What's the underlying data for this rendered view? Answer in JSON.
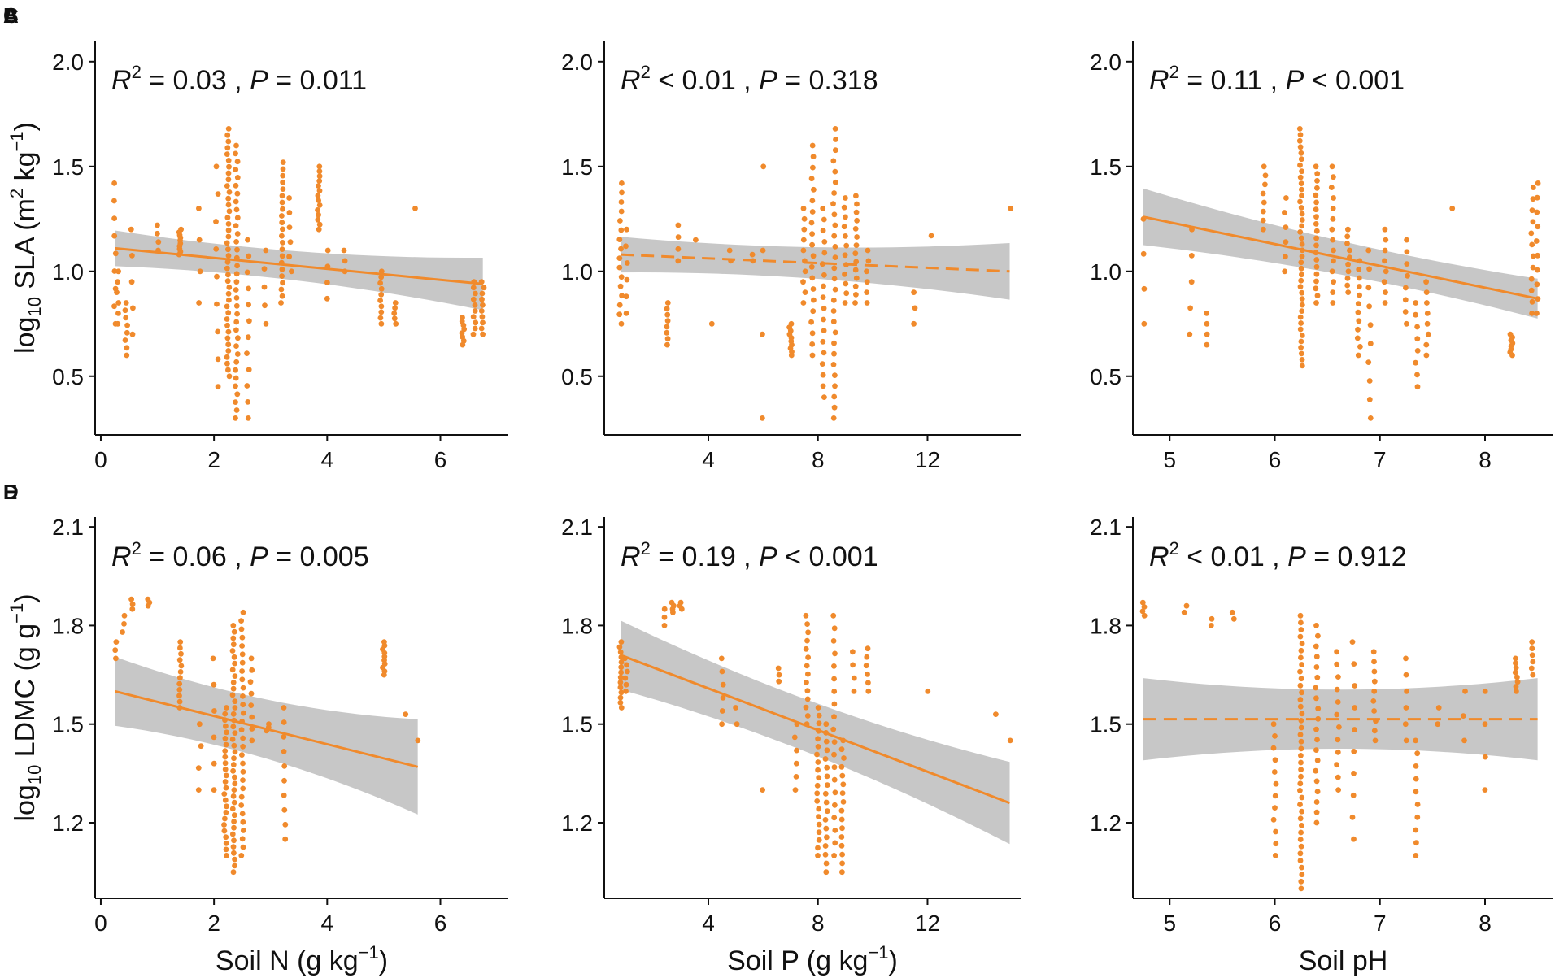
{
  "figure": {
    "colors": {
      "point": "#f08a2c",
      "line": "#f08a2c",
      "band": "#bdbdbd",
      "axis": "#111111"
    }
  },
  "chart_data": [
    {
      "type": "scatter",
      "panel": "A",
      "annotation": {
        "r2": "= 0.03",
        "p": "= 0.011"
      },
      "xlim": [
        -0.1,
        7.2
      ],
      "ylim": [
        0.22,
        2.1
      ],
      "xticks": [
        0,
        2,
        4,
        6
      ],
      "xtick_labels": [
        "0",
        "2",
        "4",
        "6"
      ],
      "yticks": [
        0.5,
        1.0,
        1.5,
        2.0
      ],
      "ytick_labels": [
        "0.5",
        "1.0",
        "1.5",
        "2.0"
      ],
      "ylabel": "SLA",
      "ylabel_prefix": "log",
      "ylabel_sub": "10",
      "ylabel_unit": "m",
      "ylabel_sup1": "2",
      "ylabel_unit2": "kg",
      "ylabel_sup2": "−1",
      "xlabel": "",
      "fit": {
        "x": [
          0.25,
          6.75
        ],
        "y": [
          1.11,
          0.94
        ],
        "band_half": [
          0.05,
          0.09
        ],
        "dashed": false
      },
      "clusters": [
        [
          0.25,
          0.75,
          1.42,
          9
        ],
        [
          0.3,
          0.75,
          1.0,
          6
        ],
        [
          0.45,
          0.6,
          0.85,
          8
        ],
        [
          0.55,
          0.7,
          1.2,
          5
        ],
        [
          1.0,
          1.1,
          1.22,
          4
        ],
        [
          1.4,
          1.08,
          1.2,
          10
        ],
        [
          1.75,
          0.85,
          1.3,
          4
        ],
        [
          2.05,
          0.45,
          1.5,
          9
        ],
        [
          2.25,
          0.5,
          1.68,
          40
        ],
        [
          2.4,
          0.3,
          1.6,
          35
        ],
        [
          2.6,
          0.3,
          1.15,
          12
        ],
        [
          2.9,
          0.75,
          1.1,
          5
        ],
        [
          3.2,
          0.85,
          1.52,
          22
        ],
        [
          3.35,
          1.0,
          1.35,
          6
        ],
        [
          3.85,
          1.2,
          1.5,
          14
        ],
        [
          4.0,
          0.87,
          1.1,
          4
        ],
        [
          4.3,
          1.0,
          1.1,
          3
        ],
        [
          4.95,
          0.75,
          1.0,
          10
        ],
        [
          5.2,
          0.75,
          0.85,
          5
        ],
        [
          5.55,
          1.3,
          1.3,
          1
        ],
        [
          6.4,
          0.65,
          0.78,
          8
        ],
        [
          6.6,
          0.7,
          0.95,
          10
        ],
        [
          6.75,
          0.7,
          0.95,
          10
        ]
      ]
    },
    {
      "type": "scatter",
      "panel": "B",
      "annotation": {
        "r2": "< 0.01",
        "p": "= 0.318"
      },
      "xlim": [
        0.2,
        15.4
      ],
      "ylim": [
        0.22,
        2.1
      ],
      "xticks": [
        4,
        8,
        12
      ],
      "xtick_labels": [
        "4",
        "8",
        "12"
      ],
      "yticks": [
        0.5,
        1.0,
        1.5,
        2.0
      ],
      "ytick_labels": [
        "0.5",
        "1.0",
        "1.5",
        "2.0"
      ],
      "ylabel": "",
      "xlabel": "",
      "fit": {
        "x": [
          0.8,
          15.0
        ],
        "y": [
          1.08,
          1.0
        ],
        "band_half": [
          0.05,
          0.1
        ],
        "dashed": true
      },
      "clusters": [
        [
          0.8,
          0.75,
          1.42,
          16
        ],
        [
          1.0,
          0.8,
          1.2,
          6
        ],
        [
          2.5,
          0.65,
          0.85,
          8
        ],
        [
          2.9,
          1.05,
          1.22,
          4
        ],
        [
          3.5,
          1.15,
          1.15,
          1
        ],
        [
          4.1,
          0.75,
          0.75,
          1
        ],
        [
          4.8,
          1.05,
          1.1,
          2
        ],
        [
          5.6,
          1.05,
          1.08,
          2
        ],
        [
          6.0,
          0.3,
          1.5,
          4
        ],
        [
          7.0,
          0.6,
          0.75,
          10
        ],
        [
          7.5,
          0.85,
          1.3,
          10
        ],
        [
          7.8,
          0.6,
          1.6,
          20
        ],
        [
          8.2,
          0.4,
          1.3,
          18
        ],
        [
          8.6,
          0.3,
          1.68,
          28
        ],
        [
          9.0,
          0.85,
          1.35,
          12
        ],
        [
          9.4,
          0.85,
          1.36,
          14
        ],
        [
          9.8,
          0.85,
          1.1,
          6
        ],
        [
          11.5,
          0.75,
          0.9,
          3
        ],
        [
          12.1,
          1.17,
          1.17,
          1
        ],
        [
          15.0,
          1.3,
          1.3,
          1
        ]
      ]
    },
    {
      "type": "scatter",
      "panel": "C",
      "annotation": {
        "r2": "= 0.11",
        "p": "< 0.001"
      },
      "xlim": [
        4.65,
        8.65
      ],
      "ylim": [
        0.22,
        2.1
      ],
      "xticks": [
        5,
        6,
        7,
        8
      ],
      "xtick_labels": [
        "5",
        "6",
        "7",
        "8"
      ],
      "yticks": [
        0.5,
        1.0,
        1.5,
        2.0
      ],
      "ytick_labels": [
        "0.5",
        "1.0",
        "1.5",
        "2.0"
      ],
      "ylabel": "",
      "xlabel": "",
      "fit": {
        "x": [
          4.75,
          8.5
        ],
        "y": [
          1.26,
          0.87
        ],
        "band_half": [
          0.1,
          0.06
        ],
        "dashed": false
      },
      "clusters": [
        [
          4.75,
          0.75,
          1.25,
          4
        ],
        [
          5.2,
          0.7,
          1.2,
          5
        ],
        [
          5.35,
          0.65,
          0.8,
          4
        ],
        [
          5.9,
          1.2,
          1.5,
          8
        ],
        [
          6.1,
          1.0,
          1.35,
          6
        ],
        [
          6.25,
          0.55,
          1.68,
          40
        ],
        [
          6.4,
          0.85,
          1.5,
          20
        ],
        [
          6.55,
          0.85,
          1.5,
          14
        ],
        [
          6.7,
          0.9,
          1.2,
          10
        ],
        [
          6.8,
          0.6,
          1.05,
          12
        ],
        [
          6.9,
          0.3,
          1.1,
          10
        ],
        [
          7.05,
          0.85,
          1.2,
          8
        ],
        [
          7.25,
          0.75,
          1.15,
          8
        ],
        [
          7.35,
          0.45,
          0.85,
          8
        ],
        [
          7.45,
          0.6,
          0.95,
          8
        ],
        [
          7.7,
          1.3,
          1.3,
          1
        ],
        [
          8.25,
          0.6,
          0.7,
          8
        ],
        [
          8.45,
          0.8,
          1.4,
          12
        ],
        [
          8.5,
          0.8,
          1.42,
          10
        ]
      ]
    },
    {
      "type": "scatter",
      "panel": "D",
      "annotation": {
        "r2": "= 0.06",
        "p": "= 0.005"
      },
      "xlim": [
        -0.1,
        7.2
      ],
      "ylim": [
        0.97,
        2.13
      ],
      "xticks": [
        0,
        2,
        4,
        6
      ],
      "xtick_labels": [
        "0",
        "2",
        "4",
        "6"
      ],
      "yticks": [
        1.2,
        1.5,
        1.8,
        2.1
      ],
      "ytick_labels": [
        "1.2",
        "1.5",
        "1.8",
        "2.1"
      ],
      "ylabel": "LDMC",
      "ylabel_prefix": "log",
      "ylabel_sub": "10",
      "ylabel_unit": "g",
      "ylabel_sup1": "",
      "ylabel_unit2": "g",
      "ylabel_sup2": "−1",
      "xlabel": "Soil N",
      "xlabel_unit": "g kg",
      "xlabel_sup": "−1",
      "fit": {
        "x": [
          0.25,
          5.6
        ],
        "y": [
          1.6,
          1.37
        ],
        "band_half": [
          0.07,
          0.11
        ],
        "dashed": false
      },
      "clusters": [
        [
          0.25,
          1.7,
          1.75,
          3
        ],
        [
          0.4,
          1.78,
          1.83,
          3
        ],
        [
          0.55,
          1.85,
          1.88,
          3
        ],
        [
          0.85,
          1.86,
          1.88,
          3
        ],
        [
          1.4,
          1.55,
          1.75,
          12
        ],
        [
          1.75,
          1.3,
          1.5,
          4
        ],
        [
          2.0,
          1.3,
          1.7,
          6
        ],
        [
          2.2,
          1.1,
          1.55,
          25
        ],
        [
          2.35,
          1.05,
          1.8,
          40
        ],
        [
          2.5,
          1.1,
          1.84,
          30
        ],
        [
          2.65,
          1.45,
          1.7,
          8
        ],
        [
          2.95,
          1.48,
          1.5,
          3
        ],
        [
          3.25,
          1.15,
          1.55,
          10
        ],
        [
          5.0,
          1.65,
          1.75,
          10
        ],
        [
          5.4,
          1.53,
          1.53,
          1
        ],
        [
          5.6,
          1.45,
          1.45,
          1
        ]
      ]
    },
    {
      "type": "scatter",
      "panel": "E",
      "annotation": {
        "r2": "= 0.19",
        "p": "< 0.001"
      },
      "xlim": [
        0.2,
        15.4
      ],
      "ylim": [
        0.97,
        2.13
      ],
      "xticks": [
        4,
        8,
        12
      ],
      "xtick_labels": [
        "4",
        "8",
        "12"
      ],
      "yticks": [
        1.2,
        1.5,
        1.8,
        2.1
      ],
      "ytick_labels": [
        "1.2",
        "1.5",
        "1.8",
        "2.1"
      ],
      "ylabel": "",
      "xlabel": "Soil P",
      "xlabel_unit": "g kg",
      "xlabel_sup": "−1",
      "fit": {
        "x": [
          0.8,
          15.0
        ],
        "y": [
          1.71,
          1.26
        ],
        "band_half": [
          0.07,
          0.09
        ],
        "dashed": false
      },
      "clusters": [
        [
          0.8,
          1.55,
          1.75,
          14
        ],
        [
          1.0,
          1.6,
          1.7,
          6
        ],
        [
          2.4,
          1.8,
          1.85,
          3
        ],
        [
          2.7,
          1.84,
          1.87,
          4
        ],
        [
          3.0,
          1.85,
          1.87,
          3
        ],
        [
          4.5,
          1.5,
          1.7,
          6
        ],
        [
          5.0,
          1.5,
          1.55,
          2
        ],
        [
          6.0,
          1.3,
          1.3,
          1
        ],
        [
          6.6,
          1.63,
          1.67,
          3
        ],
        [
          7.2,
          1.3,
          1.5,
          6
        ],
        [
          7.6,
          1.5,
          1.83,
          14
        ],
        [
          8.0,
          1.1,
          1.55,
          20
        ],
        [
          8.3,
          1.05,
          1.5,
          18
        ],
        [
          8.6,
          1.1,
          1.83,
          20
        ],
        [
          8.9,
          1.05,
          1.45,
          16
        ],
        [
          9.3,
          1.6,
          1.72,
          4
        ],
        [
          9.8,
          1.6,
          1.73,
          6
        ],
        [
          12.0,
          1.6,
          1.6,
          1
        ],
        [
          14.5,
          1.53,
          1.53,
          1
        ],
        [
          15.0,
          1.45,
          1.45,
          1
        ]
      ]
    },
    {
      "type": "scatter",
      "panel": "F",
      "annotation": {
        "r2": "< 0.01",
        "p": "= 0.912"
      },
      "xlim": [
        4.65,
        8.65
      ],
      "ylim": [
        0.97,
        2.13
      ],
      "xticks": [
        5,
        6,
        7,
        8
      ],
      "xtick_labels": [
        "5",
        "6",
        "7",
        "8"
      ],
      "yticks": [
        1.2,
        1.5,
        1.8,
        2.1
      ],
      "ytick_labels": [
        "1.2",
        "1.5",
        "1.8",
        "2.1"
      ],
      "ylabel": "",
      "xlabel": "Soil pH",
      "xlabel_unit": "",
      "xlabel_sup": "",
      "fit": {
        "x": [
          4.75,
          8.5
        ],
        "y": [
          1.515,
          1.515
        ],
        "band_half": [
          0.09,
          0.09
        ],
        "dashed": true
      },
      "clusters": [
        [
          4.75,
          1.83,
          1.87,
          4
        ],
        [
          5.15,
          1.84,
          1.86,
          2
        ],
        [
          5.4,
          1.8,
          1.82,
          2
        ],
        [
          5.6,
          1.82,
          1.84,
          2
        ],
        [
          6.0,
          1.1,
          1.5,
          12
        ],
        [
          6.25,
          1.0,
          1.83,
          40
        ],
        [
          6.4,
          1.2,
          1.8,
          20
        ],
        [
          6.6,
          1.3,
          1.72,
          12
        ],
        [
          6.75,
          1.15,
          1.75,
          10
        ],
        [
          6.95,
          1.45,
          1.72,
          10
        ],
        [
          7.25,
          1.45,
          1.7,
          6
        ],
        [
          7.35,
          1.1,
          1.45,
          10
        ],
        [
          7.55,
          1.5,
          1.55,
          2
        ],
        [
          7.8,
          1.45,
          1.6,
          3
        ],
        [
          8.0,
          1.3,
          1.6,
          4
        ],
        [
          8.3,
          1.6,
          1.7,
          8
        ],
        [
          8.45,
          1.65,
          1.75,
          6
        ]
      ]
    }
  ]
}
